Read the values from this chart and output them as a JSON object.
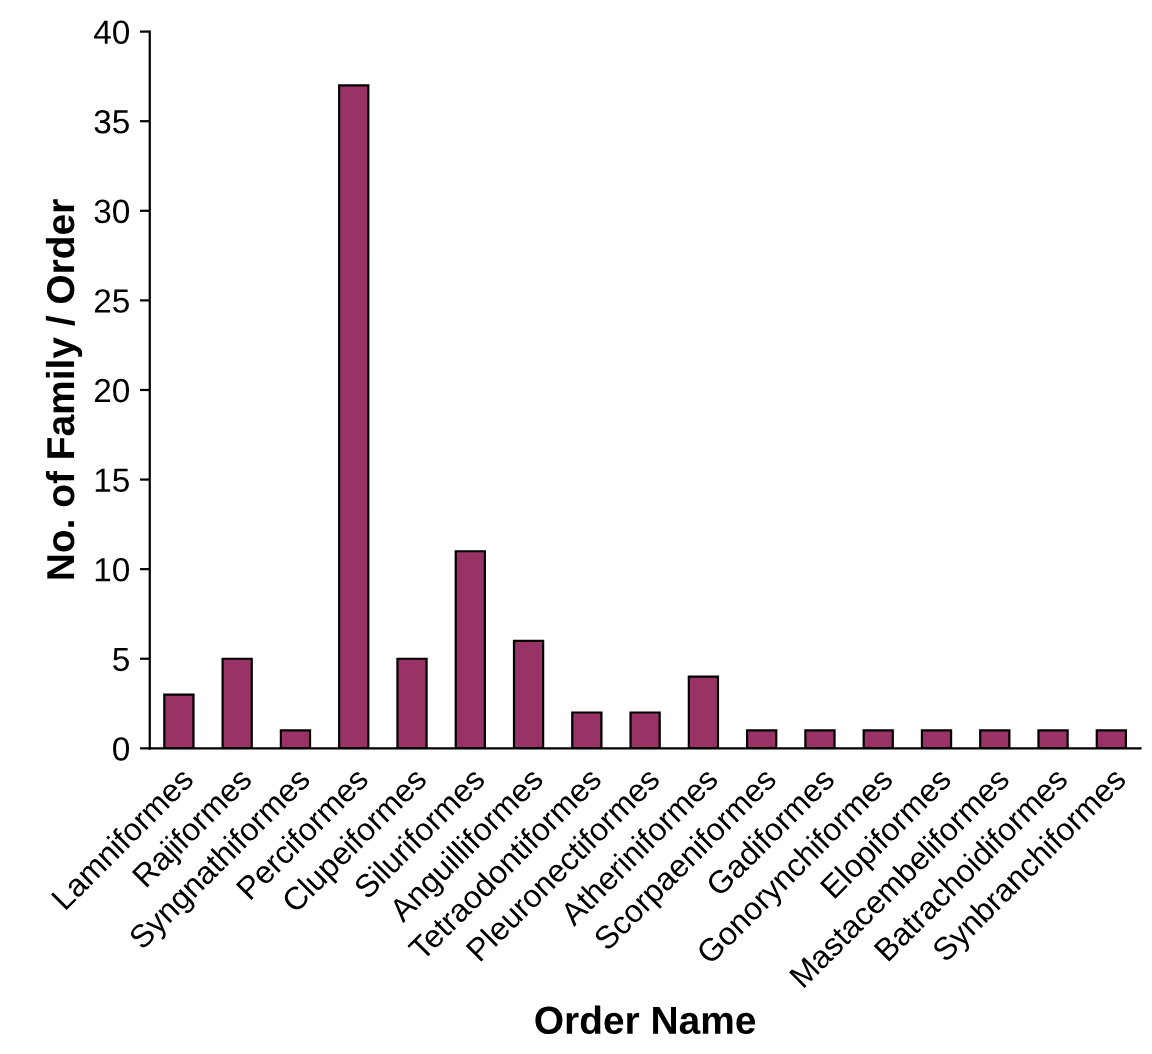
{
  "chart_data": {
    "type": "bar",
    "xlabel": "Order Name",
    "ylabel": "No. of Family / Order",
    "categories": [
      "Lamniformes",
      "Rajiformes",
      "Syngnathiformes",
      "Perciformes",
      "Clupeiformes",
      "Siluriformes",
      "Anguilliformes",
      "Tetraodontiformes",
      "Pleuronectiformes",
      "Atheriniformes",
      "Scorpaeniformes",
      "Gadiformes",
      "Gonorynchiformes",
      "Elopiformes",
      "Mastacembeliformes",
      "Batrachoidiformes",
      "Synbranchiformes"
    ],
    "values": [
      3,
      5,
      1,
      37,
      5,
      11,
      6,
      2,
      2,
      4,
      1,
      1,
      1,
      1,
      1,
      1,
      1
    ],
    "color": "#993366",
    "ylim": [
      0,
      40
    ],
    "yticks": [
      0,
      5,
      10,
      15,
      20,
      25,
      30,
      35,
      40
    ],
    "grid": false
  }
}
